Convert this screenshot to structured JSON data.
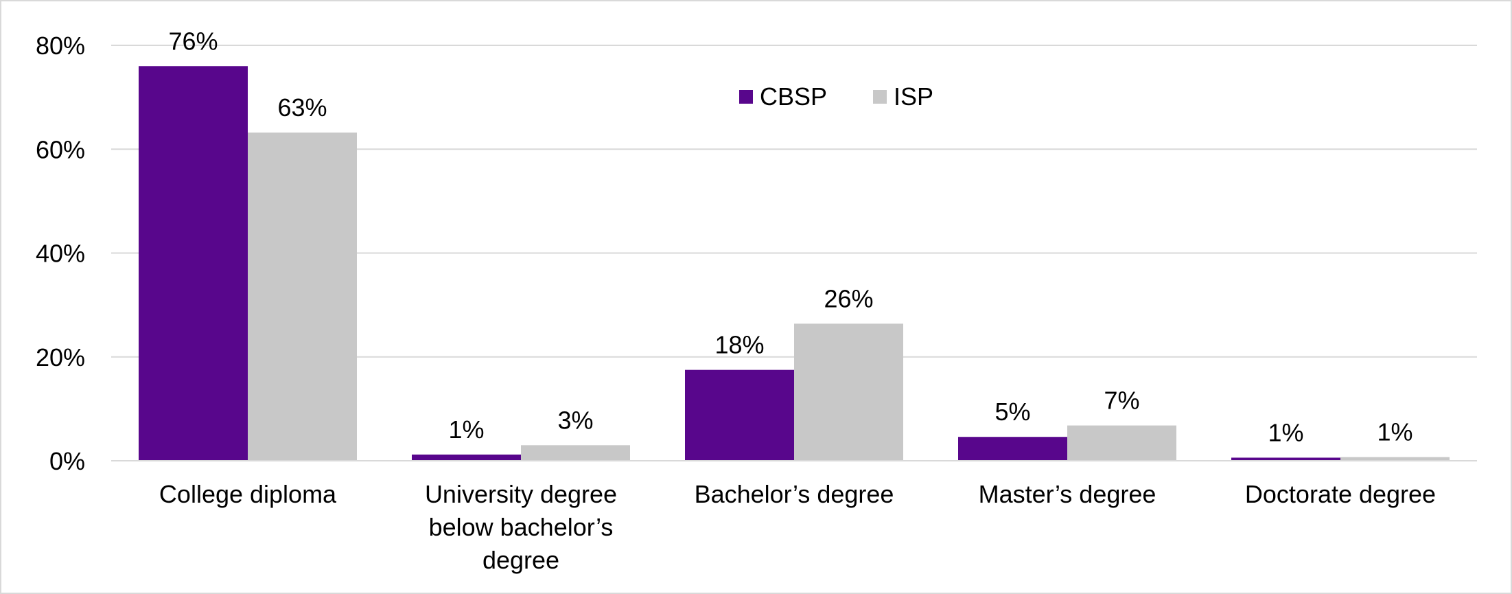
{
  "colors": {
    "CBSP": "#58068c",
    "ISP": "#c8c8c8",
    "grid": "#d9d9d9",
    "axis": "#d9d9d9"
  },
  "chart_data": {
    "type": "bar",
    "categories": [
      [
        "College diploma"
      ],
      [
        "University degree",
        "below bachelor’s",
        "degree"
      ],
      [
        "Bachelor’s degree"
      ],
      [
        "Master’s degree"
      ],
      [
        "Doctorate degree"
      ]
    ],
    "series": [
      {
        "name": "CBSP",
        "values": [
          76,
          1,
          18,
          5,
          1
        ],
        "plotted": [
          76,
          1.2,
          17.5,
          4.6,
          0.6
        ],
        "labels": [
          "76%",
          "1%",
          "18%",
          "5%",
          "1%"
        ]
      },
      {
        "name": "ISP",
        "values": [
          63,
          3,
          26,
          7,
          1
        ],
        "plotted": [
          63.2,
          3.0,
          26.4,
          6.8,
          0.7
        ],
        "labels": [
          "63%",
          "3%",
          "26%",
          "7%",
          "1%"
        ]
      }
    ],
    "ylim": [
      0,
      80
    ],
    "yticks": [
      0,
      20,
      40,
      60,
      80
    ],
    "ytick_labels": [
      "0%",
      "20%",
      "40%",
      "60%",
      "80%"
    ],
    "grid": true,
    "legend_position": "top-center",
    "title": "",
    "xlabel": "",
    "ylabel": ""
  }
}
